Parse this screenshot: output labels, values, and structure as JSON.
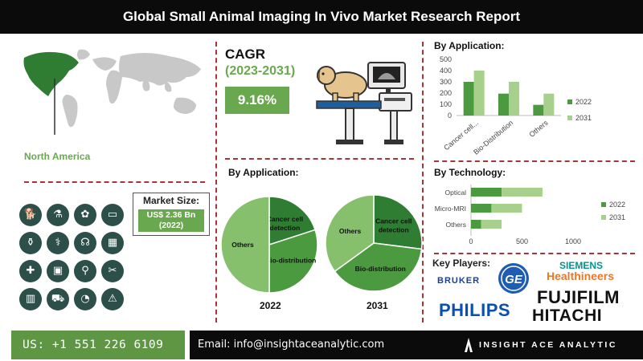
{
  "header": {
    "title": "Global Small Animal Imaging In Vivo Market Research Report"
  },
  "region": {
    "label": "North America"
  },
  "market_size": {
    "title": "Market Size:",
    "value_line1": "US$ 2.36 Bn",
    "value_line2": "(2022)"
  },
  "cagr": {
    "title": "CAGR",
    "years": "(2023-2031)",
    "value": "9.16%"
  },
  "pie_section": {
    "title": "By Application:",
    "label_2022": "2022",
    "label_2031": "2031"
  },
  "key_players": {
    "title": "Key Players:",
    "logos": [
      "BRUKER",
      "SIEMENS",
      "Healthineers",
      "FUJIFILM",
      "PHILIPS",
      "HITACHI"
    ]
  },
  "footer": {
    "phone": "US: +1 551 226 6109",
    "email": "Email: info@insightaceanalytic.com",
    "brand": "INSIGHT ACE ANALYTIC"
  },
  "icons": [
    "dog-icon",
    "bottle-icon",
    "paw-icon",
    "bed-icon",
    "vials-icon",
    "syringe-icon",
    "stethoscope-icon",
    "dog-xray-icon",
    "pill-bottle-icon",
    "scanner-icon",
    "microscope-icon",
    "scissors-icon",
    "cage-icon",
    "ambulance-icon",
    "gauge-icon",
    "alarm-icon"
  ],
  "colors": {
    "dark_green": "#2e7d32",
    "mid_green": "#4c9a3f",
    "light_green": "#86c06c",
    "brand_green": "#6aa84f"
  },
  "chart_data": [
    {
      "type": "bar",
      "title": "By Application:",
      "categories": [
        "Cancer cell...",
        "Bio-Distribution",
        "Others"
      ],
      "series": [
        {
          "name": "2022",
          "values": [
            300,
            195,
            95
          ]
        },
        {
          "name": "2031",
          "values": [
            400,
            300,
            195
          ]
        }
      ],
      "ylim": [
        0,
        500
      ],
      "yticks": [
        0,
        100,
        200,
        300,
        400,
        500
      ],
      "legend": "right"
    },
    {
      "type": "bar",
      "orientation": "horizontal",
      "stacked": true,
      "title": "By Technology:",
      "categories": [
        "Optical",
        "Micro-MRI",
        "Others"
      ],
      "series": [
        {
          "name": "2022",
          "values": [
            300,
            200,
            100
          ]
        },
        {
          "name": "2031",
          "values": [
            400,
            300,
            200
          ]
        }
      ],
      "xlim": [
        0,
        1000
      ],
      "xticks": [
        0,
        500,
        1000
      ],
      "legend": "right"
    },
    {
      "type": "pie",
      "title": "2022",
      "labels": [
        "Cancer cell detection",
        "Bio-distribution",
        "Others"
      ],
      "values": [
        20,
        30,
        50
      ]
    },
    {
      "type": "pie",
      "title": "2031",
      "labels": [
        "Cancer cell detection",
        "Bio-distribution",
        "Others"
      ],
      "values": [
        27,
        38,
        35
      ]
    }
  ]
}
